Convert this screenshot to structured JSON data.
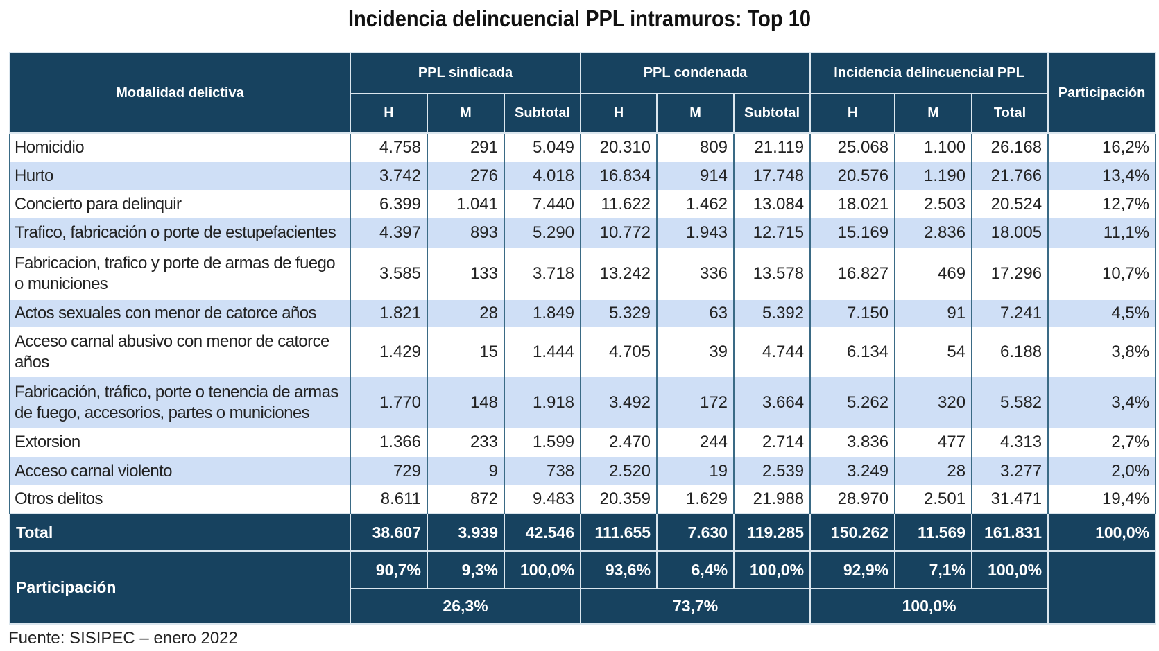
{
  "title": "Incidencia delincuencial PPL intramuros: Top 10",
  "header": {
    "modalidad": "Modalidad delictiva",
    "groups": [
      "PPL sindicada",
      "PPL condenada",
      "Incidencia delincuencial PPL"
    ],
    "participacion": "Participación",
    "sub": [
      "H",
      "M",
      "Subtotal",
      "H",
      "M",
      "Subtotal",
      "H",
      "M",
      "Total"
    ]
  },
  "rows": [
    {
      "label": "Homicidio",
      "values": [
        "4.758",
        "291",
        "5.049",
        "20.310",
        "809",
        "21.119",
        "25.068",
        "1.100",
        "26.168",
        "16,2%"
      ]
    },
    {
      "label": "Hurto",
      "values": [
        "3.742",
        "276",
        "4.018",
        "16.834",
        "914",
        "17.748",
        "20.576",
        "1.190",
        "21.766",
        "13,4%"
      ]
    },
    {
      "label": "Concierto para delinquir",
      "values": [
        "6.399",
        "1.041",
        "7.440",
        "11.622",
        "1.462",
        "13.084",
        "18.021",
        "2.503",
        "20.524",
        "12,7%"
      ]
    },
    {
      "label": "Trafico, fabricación o porte de estupefacientes",
      "values": [
        "4.397",
        "893",
        "5.290",
        "10.772",
        "1.943",
        "12.715",
        "15.169",
        "2.836",
        "18.005",
        "11,1%"
      ]
    },
    {
      "label": "Fabricacion, trafico y porte de armas de fuego o municiones",
      "values": [
        "3.585",
        "133",
        "3.718",
        "13.242",
        "336",
        "13.578",
        "16.827",
        "469",
        "17.296",
        "10,7%"
      ]
    },
    {
      "label": "Actos sexuales con menor de catorce años",
      "values": [
        "1.821",
        "28",
        "1.849",
        "5.329",
        "63",
        "5.392",
        "7.150",
        "91",
        "7.241",
        "4,5%"
      ]
    },
    {
      "label": "Acceso carnal abusivo con menor de catorce años",
      "values": [
        "1.429",
        "15",
        "1.444",
        "4.705",
        "39",
        "4.744",
        "6.134",
        "54",
        "6.188",
        "3,8%"
      ]
    },
    {
      "label": "Fabricación, tráfico, porte o tenencia de armas de fuego, accesorios, partes o municiones",
      "values": [
        "1.770",
        "148",
        "1.918",
        "3.492",
        "172",
        "3.664",
        "5.262",
        "320",
        "5.582",
        "3,4%"
      ]
    },
    {
      "label": "Extorsion",
      "values": [
        "1.366",
        "233",
        "1.599",
        "2.470",
        "244",
        "2.714",
        "3.836",
        "477",
        "4.313",
        "2,7%"
      ]
    },
    {
      "label": "Acceso carnal violento",
      "values": [
        "729",
        "9",
        "738",
        "2.520",
        "19",
        "2.539",
        "3.249",
        "28",
        "3.277",
        "2,0%"
      ]
    },
    {
      "label": "Otros delitos",
      "values": [
        "8.611",
        "872",
        "9.483",
        "20.359",
        "1.629",
        "21.988",
        "28.970",
        "2.501",
        "31.471",
        "19,4%"
      ]
    }
  ],
  "total": {
    "label": "Total",
    "values": [
      "38.607",
      "3.939",
      "42.546",
      "111.655",
      "7.630",
      "119.285",
      "150.262",
      "11.569",
      "161.831",
      "100,0%"
    ]
  },
  "participacion": {
    "label": "Participación",
    "values": [
      "90,7%",
      "9,3%",
      "100,0%",
      "93,6%",
      "6,4%",
      "100,0%",
      "92,9%",
      "7,1%",
      "100,0%"
    ],
    "groups": [
      "26,3%",
      "73,7%",
      "100,0%"
    ]
  },
  "source": "Fuente: SISIPEC – enero 2022"
}
